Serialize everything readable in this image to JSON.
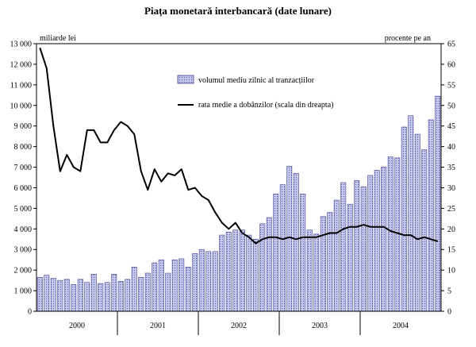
{
  "chart_data": {
    "type": "bar+line",
    "title": "Piața monetară interbancară (date lunare)",
    "left_unit": "miliarde lei",
    "right_unit": "procente pe an",
    "ylim_left": [
      0,
      13000
    ],
    "ylim_right": [
      0,
      65
    ],
    "left_ticks": [
      "0",
      "1 000",
      "2 000",
      "3 000",
      "4 000",
      "5 000",
      "6 000",
      "7 000",
      "8 000",
      "9 000",
      "10 000",
      "11 000",
      "12 000",
      "13 000"
    ],
    "right_ticks": [
      "0",
      "5",
      "10",
      "15",
      "20",
      "25",
      "30",
      "35",
      "40",
      "45",
      "50",
      "55",
      "60",
      "65"
    ],
    "years": [
      "2000",
      "2001",
      "2002",
      "2003",
      "2004"
    ],
    "legend": {
      "bars": "volumul mediu zilnic al tranzacțiilor",
      "line": "rata medie a dobânzilor (scala din dreapta)"
    },
    "series": [
      {
        "type": "bar",
        "axis": "left",
        "values": [
          1650,
          1750,
          1600,
          1500,
          1550,
          1300,
          1550,
          1400,
          1800,
          1350,
          1400,
          1800,
          1450,
          1550,
          2150,
          1650,
          1850,
          2350,
          2500,
          1850,
          2500,
          2550,
          2150,
          2800,
          3000,
          2900,
          2900,
          3700,
          3850,
          3950,
          3950,
          3700,
          3500,
          4250,
          4550,
          5700,
          6150,
          7050,
          6700,
          5700,
          3950,
          3750,
          4600,
          4800,
          5400,
          6250,
          5200,
          6350,
          6050,
          6600,
          6850,
          7000,
          7500,
          7450,
          8950,
          9500,
          8600,
          7850,
          9300,
          10450
        ]
      },
      {
        "type": "line",
        "axis": "right",
        "values": [
          64,
          59,
          45,
          34,
          38,
          35,
          34,
          44,
          44,
          41,
          41,
          44,
          46,
          45,
          43,
          34,
          29.5,
          34.5,
          31.5,
          33.5,
          33,
          34.5,
          29.5,
          30,
          28,
          27,
          24,
          21.5,
          20,
          21.5,
          19,
          18,
          16.5,
          17.5,
          18,
          18,
          17.5,
          18,
          17.5,
          18,
          18,
          18,
          18.5,
          19,
          19,
          20,
          20.5,
          20.5,
          21,
          20.5,
          20.5,
          20.5,
          19.5,
          19,
          18.5,
          18.5,
          17.5,
          18,
          17.5,
          17
        ]
      }
    ],
    "colors": {
      "bar_fill": "#c2c6ea",
      "bar_stroke": "#3d3d8f",
      "line": "#000000",
      "axis": "#000000"
    }
  }
}
